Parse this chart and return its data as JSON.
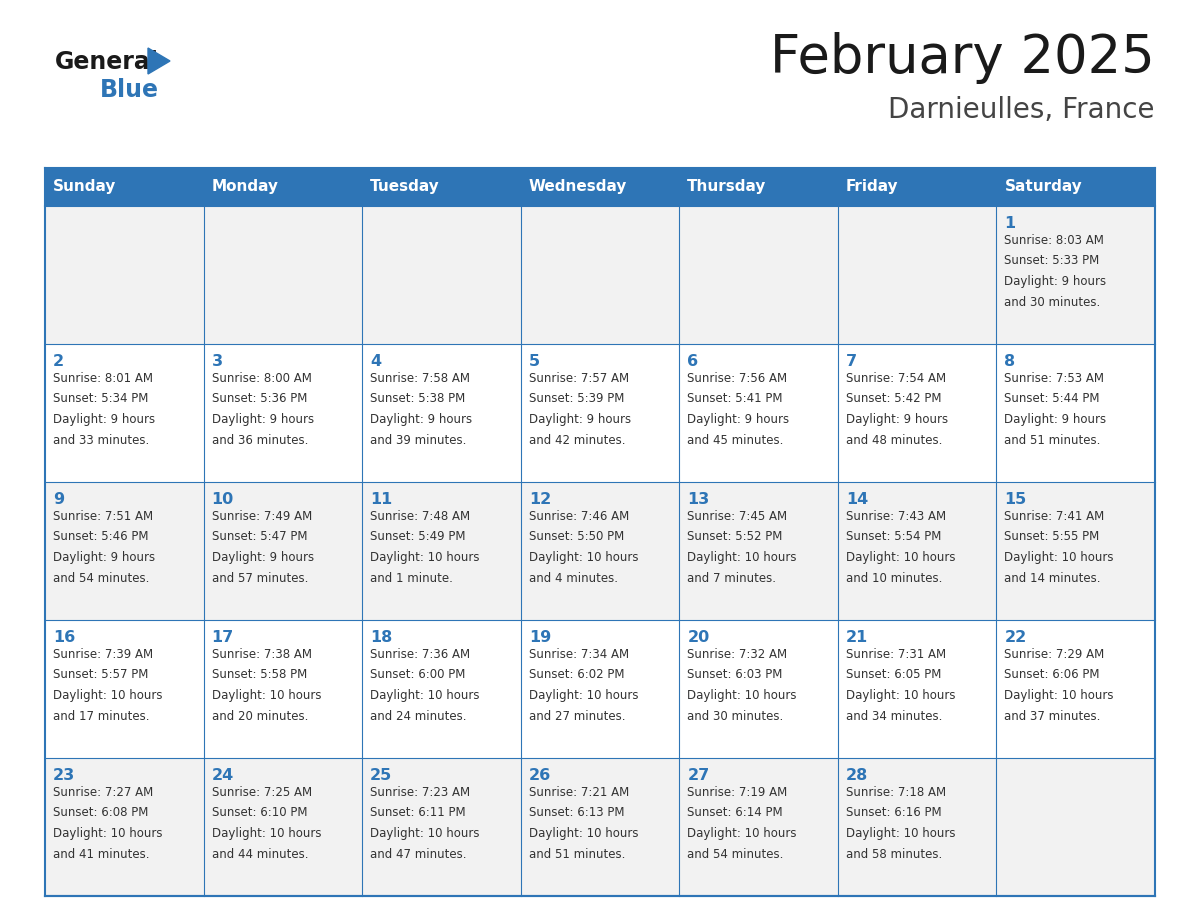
{
  "title": "February 2025",
  "subtitle": "Darnieulles, France",
  "header_bg": "#2E75B6",
  "header_text_color": "#FFFFFF",
  "cell_bg_light": "#F2F2F2",
  "cell_bg_white": "#FFFFFF",
  "border_color": "#2E75B6",
  "days_of_week": [
    "Sunday",
    "Monday",
    "Tuesday",
    "Wednesday",
    "Thursday",
    "Friday",
    "Saturday"
  ],
  "title_color": "#1a1a1a",
  "subtitle_color": "#444444",
  "day_number_color": "#2E75B6",
  "cell_text_color": "#333333",
  "logo_general_color": "#1a1a1a",
  "logo_blue_color": "#2E75B6",
  "logo_triangle_color": "#2E75B6",
  "calendar": [
    [
      null,
      null,
      null,
      null,
      null,
      null,
      {
        "day": 1,
        "sunrise": "8:03 AM",
        "sunset": "5:33 PM",
        "daylight_line1": "Daylight: 9 hours",
        "daylight_line2": "and 30 minutes."
      }
    ],
    [
      {
        "day": 2,
        "sunrise": "8:01 AM",
        "sunset": "5:34 PM",
        "daylight_line1": "Daylight: 9 hours",
        "daylight_line2": "and 33 minutes."
      },
      {
        "day": 3,
        "sunrise": "8:00 AM",
        "sunset": "5:36 PM",
        "daylight_line1": "Daylight: 9 hours",
        "daylight_line2": "and 36 minutes."
      },
      {
        "day": 4,
        "sunrise": "7:58 AM",
        "sunset": "5:38 PM",
        "daylight_line1": "Daylight: 9 hours",
        "daylight_line2": "and 39 minutes."
      },
      {
        "day": 5,
        "sunrise": "7:57 AM",
        "sunset": "5:39 PM",
        "daylight_line1": "Daylight: 9 hours",
        "daylight_line2": "and 42 minutes."
      },
      {
        "day": 6,
        "sunrise": "7:56 AM",
        "sunset": "5:41 PM",
        "daylight_line1": "Daylight: 9 hours",
        "daylight_line2": "and 45 minutes."
      },
      {
        "day": 7,
        "sunrise": "7:54 AM",
        "sunset": "5:42 PM",
        "daylight_line1": "Daylight: 9 hours",
        "daylight_line2": "and 48 minutes."
      },
      {
        "day": 8,
        "sunrise": "7:53 AM",
        "sunset": "5:44 PM",
        "daylight_line1": "Daylight: 9 hours",
        "daylight_line2": "and 51 minutes."
      }
    ],
    [
      {
        "day": 9,
        "sunrise": "7:51 AM",
        "sunset": "5:46 PM",
        "daylight_line1": "Daylight: 9 hours",
        "daylight_line2": "and 54 minutes."
      },
      {
        "day": 10,
        "sunrise": "7:49 AM",
        "sunset": "5:47 PM",
        "daylight_line1": "Daylight: 9 hours",
        "daylight_line2": "and 57 minutes."
      },
      {
        "day": 11,
        "sunrise": "7:48 AM",
        "sunset": "5:49 PM",
        "daylight_line1": "Daylight: 10 hours",
        "daylight_line2": "and 1 minute."
      },
      {
        "day": 12,
        "sunrise": "7:46 AM",
        "sunset": "5:50 PM",
        "daylight_line1": "Daylight: 10 hours",
        "daylight_line2": "and 4 minutes."
      },
      {
        "day": 13,
        "sunrise": "7:45 AM",
        "sunset": "5:52 PM",
        "daylight_line1": "Daylight: 10 hours",
        "daylight_line2": "and 7 minutes."
      },
      {
        "day": 14,
        "sunrise": "7:43 AM",
        "sunset": "5:54 PM",
        "daylight_line1": "Daylight: 10 hours",
        "daylight_line2": "and 10 minutes."
      },
      {
        "day": 15,
        "sunrise": "7:41 AM",
        "sunset": "5:55 PM",
        "daylight_line1": "Daylight: 10 hours",
        "daylight_line2": "and 14 minutes."
      }
    ],
    [
      {
        "day": 16,
        "sunrise": "7:39 AM",
        "sunset": "5:57 PM",
        "daylight_line1": "Daylight: 10 hours",
        "daylight_line2": "and 17 minutes."
      },
      {
        "day": 17,
        "sunrise": "7:38 AM",
        "sunset": "5:58 PM",
        "daylight_line1": "Daylight: 10 hours",
        "daylight_line2": "and 20 minutes."
      },
      {
        "day": 18,
        "sunrise": "7:36 AM",
        "sunset": "6:00 PM",
        "daylight_line1": "Daylight: 10 hours",
        "daylight_line2": "and 24 minutes."
      },
      {
        "day": 19,
        "sunrise": "7:34 AM",
        "sunset": "6:02 PM",
        "daylight_line1": "Daylight: 10 hours",
        "daylight_line2": "and 27 minutes."
      },
      {
        "day": 20,
        "sunrise": "7:32 AM",
        "sunset": "6:03 PM",
        "daylight_line1": "Daylight: 10 hours",
        "daylight_line2": "and 30 minutes."
      },
      {
        "day": 21,
        "sunrise": "7:31 AM",
        "sunset": "6:05 PM",
        "daylight_line1": "Daylight: 10 hours",
        "daylight_line2": "and 34 minutes."
      },
      {
        "day": 22,
        "sunrise": "7:29 AM",
        "sunset": "6:06 PM",
        "daylight_line1": "Daylight: 10 hours",
        "daylight_line2": "and 37 minutes."
      }
    ],
    [
      {
        "day": 23,
        "sunrise": "7:27 AM",
        "sunset": "6:08 PM",
        "daylight_line1": "Daylight: 10 hours",
        "daylight_line2": "and 41 minutes."
      },
      {
        "day": 24,
        "sunrise": "7:25 AM",
        "sunset": "6:10 PM",
        "daylight_line1": "Daylight: 10 hours",
        "daylight_line2": "and 44 minutes."
      },
      {
        "day": 25,
        "sunrise": "7:23 AM",
        "sunset": "6:11 PM",
        "daylight_line1": "Daylight: 10 hours",
        "daylight_line2": "and 47 minutes."
      },
      {
        "day": 26,
        "sunrise": "7:21 AM",
        "sunset": "6:13 PM",
        "daylight_line1": "Daylight: 10 hours",
        "daylight_line2": "and 51 minutes."
      },
      {
        "day": 27,
        "sunrise": "7:19 AM",
        "sunset": "6:14 PM",
        "daylight_line1": "Daylight: 10 hours",
        "daylight_line2": "and 54 minutes."
      },
      {
        "day": 28,
        "sunrise": "7:18 AM",
        "sunset": "6:16 PM",
        "daylight_line1": "Daylight: 10 hours",
        "daylight_line2": "and 58 minutes."
      },
      null
    ]
  ]
}
